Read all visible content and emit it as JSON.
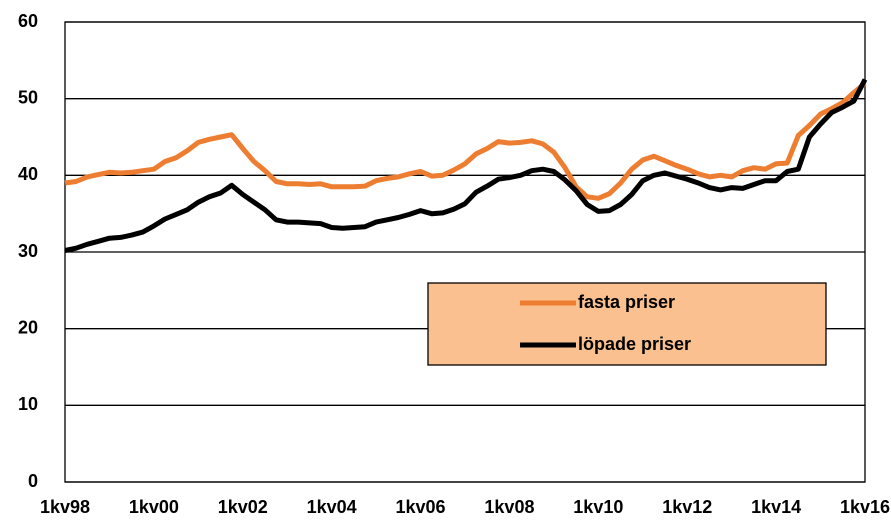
{
  "chart_data": {
    "type": "line",
    "categories": [
      "1kv98",
      null,
      null,
      null,
      null,
      null,
      null,
      null,
      "1kv00",
      null,
      null,
      null,
      null,
      null,
      null,
      null,
      "1kv02",
      null,
      null,
      null,
      null,
      null,
      null,
      null,
      "1kv04",
      null,
      null,
      null,
      null,
      null,
      null,
      null,
      "1kv06",
      null,
      null,
      null,
      null,
      null,
      null,
      null,
      "1kv08",
      null,
      null,
      null,
      null,
      null,
      null,
      null,
      "1kv10",
      null,
      null,
      null,
      null,
      null,
      null,
      null,
      "1kv12",
      null,
      null,
      null,
      null,
      null,
      null,
      null,
      "1kv14",
      null,
      null,
      null,
      null,
      null,
      null,
      null,
      "1kv16"
    ],
    "series": [
      {
        "name": "fasta priser",
        "color": "#ed7d31",
        "values": [
          39.0,
          39.2,
          39.8,
          40.1,
          40.4,
          40.3,
          40.4,
          40.6,
          40.8,
          41.8,
          42.3,
          43.2,
          44.3,
          44.7,
          45.0,
          45.3,
          43.5,
          41.8,
          40.6,
          39.2,
          38.9,
          38.9,
          38.8,
          38.9,
          38.5,
          38.5,
          38.5,
          38.6,
          39.3,
          39.6,
          39.8,
          40.2,
          40.5,
          39.9,
          40.0,
          40.7,
          41.5,
          42.8,
          43.5,
          44.4,
          44.2,
          44.3,
          44.5,
          44.1,
          43.0,
          41.0,
          38.5,
          37.2,
          37.0,
          37.6,
          39.0,
          40.8,
          42.0,
          42.5,
          41.9,
          41.3,
          40.8,
          40.2,
          39.8,
          40.0,
          39.8,
          40.6,
          41.0,
          40.8,
          41.5,
          41.6,
          45.2,
          46.5,
          48.0,
          48.7,
          49.5,
          50.8,
          52.0
        ]
      },
      {
        "name": "löpade priser",
        "color": "#000000",
        "values": [
          30.2,
          30.5,
          31.0,
          31.4,
          31.8,
          31.9,
          32.2,
          32.6,
          33.4,
          34.3,
          34.9,
          35.5,
          36.5,
          37.2,
          37.7,
          38.7,
          37.5,
          36.5,
          35.5,
          34.2,
          33.9,
          33.9,
          33.8,
          33.7,
          33.2,
          33.1,
          33.2,
          33.3,
          33.9,
          34.2,
          34.5,
          34.9,
          35.4,
          35.0,
          35.1,
          35.6,
          36.3,
          37.8,
          38.6,
          39.5,
          39.7,
          40.0,
          40.6,
          40.8,
          40.5,
          39.4,
          38.0,
          36.2,
          35.3,
          35.4,
          36.2,
          37.5,
          39.3,
          40.0,
          40.3,
          39.9,
          39.5,
          39.0,
          38.4,
          38.1,
          38.4,
          38.3,
          38.8,
          39.3,
          39.3,
          40.5,
          40.8,
          45.0,
          46.7,
          48.2,
          48.9,
          49.7,
          52.5
        ]
      }
    ],
    "ylim": [
      0,
      60
    ],
    "yticks": [
      0,
      10,
      20,
      30,
      40,
      50,
      60
    ],
    "grid": true,
    "legend_position": "lower right",
    "legend_fill": "#fac090"
  }
}
